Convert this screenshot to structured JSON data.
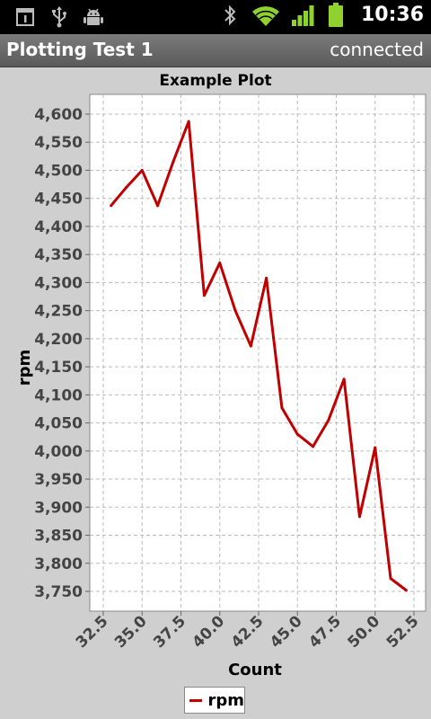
{
  "status_bar": {
    "left_icons": [
      "calendar-notification-icon",
      "usb-icon",
      "android-debug-icon"
    ],
    "right_icons": [
      "bluetooth-icon",
      "wifi-icon",
      "cell-signal-icon",
      "battery-icon"
    ],
    "clock": "10:36"
  },
  "app": {
    "title": "Plotting Test 1",
    "connection_status": "connected"
  },
  "chart_data": {
    "type": "line",
    "title": "Example Plot",
    "xlabel": "Count",
    "ylabel": "rpm",
    "xlim": [
      32.5,
      52.5
    ],
    "ylim": [
      3750,
      4600
    ],
    "xticks": [
      "32.5",
      "35.0",
      "37.5",
      "40.0",
      "42.5",
      "45.0",
      "47.5",
      "50.0",
      "52.5"
    ],
    "yticks": [
      "3,750",
      "3,800",
      "3,850",
      "3,900",
      "3,950",
      "4,000",
      "4,050",
      "4,100",
      "4,150",
      "4,200",
      "4,250",
      "4,300",
      "4,350",
      "4,400",
      "4,450",
      "4,500",
      "4,550",
      "4,600"
    ],
    "grid": true,
    "legend_position": "bottom-center",
    "series": [
      {
        "name": "rpm",
        "color": "#c00000",
        "x": [
          33,
          34,
          35,
          36,
          37,
          38,
          39,
          40,
          41,
          42,
          43,
          44,
          45,
          46,
          47,
          48,
          49,
          50,
          51,
          52
        ],
        "y": [
          4437,
          4470,
          4500,
          4437,
          4515,
          4587,
          4277,
          4335,
          4250,
          4187,
          4308,
          4077,
          4030,
          4008,
          4055,
          4128,
          3883,
          4006,
          3773,
          3752
        ]
      }
    ]
  }
}
